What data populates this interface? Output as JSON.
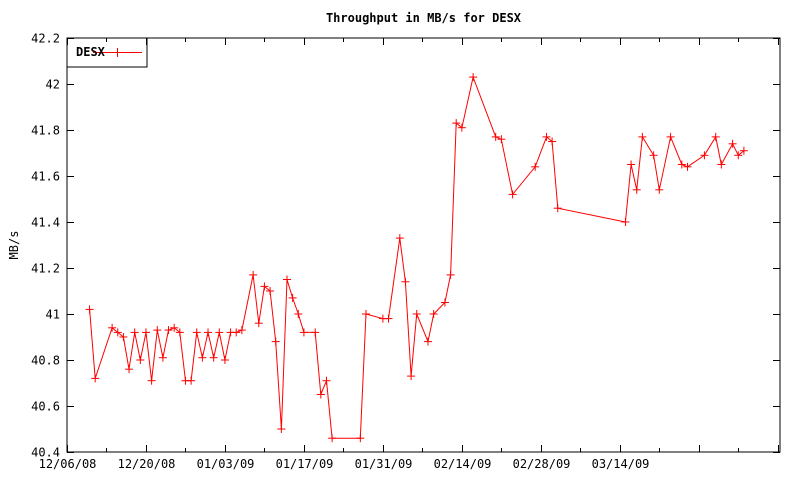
{
  "title": "Throughput in MB/s for DESX",
  "legend": {
    "label": "DESX",
    "position": "top-left-inside-box"
  },
  "chart_data": {
    "type": "line",
    "title": "Throughput in MB/s for DESX",
    "xlabel": "",
    "ylabel": "MB/s",
    "grid": false,
    "bg_color": "#ffffff",
    "axis_color": "#000000",
    "line_color": "#ff0000",
    "marker": "plus",
    "ylim": [
      40.4,
      42.2
    ],
    "y_tick_labels": [
      "40.4",
      "40.6",
      "40.8",
      "41",
      "41.2",
      "41.4",
      "41.6",
      "41.8",
      "42",
      "42.2"
    ],
    "x_start_date": "12/06/08",
    "x_range_days": [
      0,
      126.4
    ],
    "x_major_tick_interval_days": 14,
    "x_minor_tick_interval_days": 7,
    "x_tick_labels": [
      "12/06/08",
      "12/20/08",
      "01/03/09",
      "01/17/09",
      "01/31/09",
      "02/14/09",
      "02/28/09",
      "03/14/09"
    ],
    "series": [
      {
        "name": "DESX",
        "color": "#ff0000",
        "points": [
          {
            "date": "12/10/08",
            "value": 41.02
          },
          {
            "date": "12/11/08",
            "value": 40.72
          },
          {
            "date": "12/14/08",
            "value": 40.94
          },
          {
            "date": "12/15/08",
            "value": 40.92
          },
          {
            "date": "12/16/08",
            "value": 40.9
          },
          {
            "date": "12/17/08",
            "value": 40.76
          },
          {
            "date": "12/18/08",
            "value": 40.92
          },
          {
            "date": "12/19/08",
            "value": 40.8
          },
          {
            "date": "12/20/08",
            "value": 40.92
          },
          {
            "date": "12/21/08",
            "value": 40.71
          },
          {
            "date": "12/22/08",
            "value": 40.93
          },
          {
            "date": "12/23/08",
            "value": 40.81
          },
          {
            "date": "12/24/08",
            "value": 40.93
          },
          {
            "date": "12/25/08",
            "value": 40.94
          },
          {
            "date": "12/26/08",
            "value": 40.92
          },
          {
            "date": "12/27/08",
            "value": 40.71
          },
          {
            "date": "12/28/08",
            "value": 40.71
          },
          {
            "date": "12/29/08",
            "value": 40.92
          },
          {
            "date": "12/30/08",
            "value": 40.81
          },
          {
            "date": "12/31/08",
            "value": 40.92
          },
          {
            "date": "01/01/09",
            "value": 40.81
          },
          {
            "date": "01/02/09",
            "value": 40.92
          },
          {
            "date": "01/03/09",
            "value": 40.8
          },
          {
            "date": "01/04/09",
            "value": 40.92
          },
          {
            "date": "01/05/09",
            "value": 40.92
          },
          {
            "date": "01/06/09",
            "value": 40.93
          },
          {
            "date": "01/08/09",
            "value": 41.17
          },
          {
            "date": "01/09/09",
            "value": 40.96
          },
          {
            "date": "01/10/09",
            "value": 41.12
          },
          {
            "date": "01/11/09",
            "value": 41.1
          },
          {
            "date": "01/12/09",
            "value": 40.88
          },
          {
            "date": "01/13/09",
            "value": 40.5
          },
          {
            "date": "01/14/09",
            "value": 41.15
          },
          {
            "date": "01/15/09",
            "value": 41.07
          },
          {
            "date": "01/16/09",
            "value": 41.0
          },
          {
            "date": "01/17/09",
            "value": 40.92
          },
          {
            "date": "01/19/09",
            "value": 40.92
          },
          {
            "date": "01/20/09",
            "value": 40.65
          },
          {
            "date": "01/21/09",
            "value": 40.71
          },
          {
            "date": "01/22/09",
            "value": 40.46
          },
          {
            "date": "01/27/09",
            "value": 40.46
          },
          {
            "date": "01/28/09",
            "value": 41.0
          },
          {
            "date": "01/31/09",
            "value": 40.98
          },
          {
            "date": "02/01/09",
            "value": 40.98
          },
          {
            "date": "02/03/09",
            "value": 41.33
          },
          {
            "date": "02/04/09",
            "value": 41.14
          },
          {
            "date": "02/05/09",
            "value": 40.73
          },
          {
            "date": "02/06/09",
            "value": 41.0
          },
          {
            "date": "02/08/09",
            "value": 40.88
          },
          {
            "date": "02/09/09",
            "value": 41.0
          },
          {
            "date": "02/11/09",
            "value": 41.05
          },
          {
            "date": "02/12/09",
            "value": 41.17
          },
          {
            "date": "02/13/09",
            "value": 41.83
          },
          {
            "date": "02/14/09",
            "value": 41.81
          },
          {
            "date": "02/16/09",
            "value": 42.03
          },
          {
            "date": "02/20/09",
            "value": 41.77
          },
          {
            "date": "02/21/09",
            "value": 41.76
          },
          {
            "date": "02/23/09",
            "value": 41.52
          },
          {
            "date": "02/27/09",
            "value": 41.64
          },
          {
            "date": "03/01/09",
            "value": 41.77
          },
          {
            "date": "03/02/09",
            "value": 41.75
          },
          {
            "date": "03/03/09",
            "value": 41.46
          },
          {
            "date": "03/15/09",
            "value": 41.4
          },
          {
            "date": "03/16/09",
            "value": 41.65
          },
          {
            "date": "03/17/09",
            "value": 41.54
          },
          {
            "date": "03/18/09",
            "value": 41.77
          },
          {
            "date": "03/20/09",
            "value": 41.69
          },
          {
            "date": "03/21/09",
            "value": 41.54
          },
          {
            "date": "03/23/09",
            "value": 41.77
          },
          {
            "date": "03/25/09",
            "value": 41.65
          },
          {
            "date": "03/26/09",
            "value": 41.64
          },
          {
            "date": "03/29/09",
            "value": 41.69
          },
          {
            "date": "03/31/09",
            "value": 41.77
          },
          {
            "date": "04/01/09",
            "value": 41.65
          },
          {
            "date": "04/03/09",
            "value": 41.74
          },
          {
            "date": "04/04/09",
            "value": 41.69
          },
          {
            "date": "04/05/09",
            "value": 41.71
          }
        ]
      }
    ]
  }
}
